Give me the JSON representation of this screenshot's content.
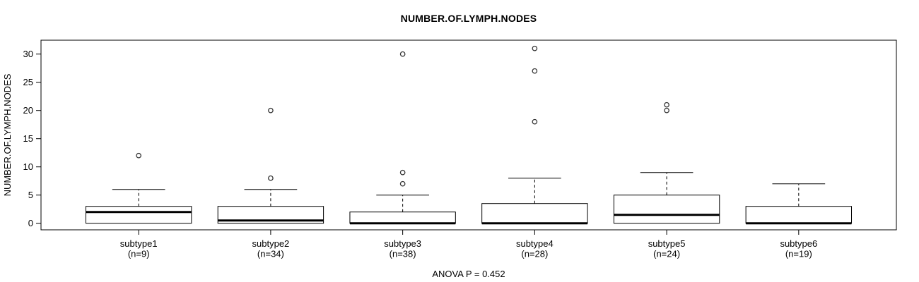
{
  "chart_data": {
    "type": "boxplot",
    "title": "NUMBER.OF.LYMPH.NODES",
    "ylabel": "NUMBER.OF.LYMPH.NODES",
    "xlabel": "",
    "annotation": "ANOVA P = 0.452",
    "yticks": [
      0,
      5,
      10,
      15,
      20,
      25,
      30
    ],
    "ylim": [
      -1.2,
      32.5
    ],
    "grid": false,
    "legend": "none",
    "groups": [
      {
        "label": "subtype1",
        "n": 9,
        "n_label": "(n=9)",
        "whisker_low": 0,
        "q1": 0,
        "median": 2,
        "q3": 3,
        "whisker_high": 6,
        "outliers": [
          12
        ]
      },
      {
        "label": "subtype2",
        "n": 34,
        "n_label": "(n=34)",
        "whisker_low": 0,
        "q1": 0,
        "median": 0.5,
        "q3": 3,
        "whisker_high": 6,
        "outliers": [
          8,
          20
        ]
      },
      {
        "label": "subtype3",
        "n": 38,
        "n_label": "(n=38)",
        "whisker_low": 0,
        "q1": 0,
        "median": 0,
        "q3": 2,
        "whisker_high": 5,
        "outliers": [
          7,
          9,
          30
        ]
      },
      {
        "label": "subtype4",
        "n": 28,
        "n_label": "(n=28)",
        "whisker_low": 0,
        "q1": 0,
        "median": 0,
        "q3": 3.5,
        "whisker_high": 8,
        "outliers": [
          18,
          27,
          31
        ]
      },
      {
        "label": "subtype5",
        "n": 24,
        "n_label": "(n=24)",
        "whisker_low": 0,
        "q1": 0,
        "median": 1.5,
        "q3": 5,
        "whisker_high": 9,
        "outliers": [
          20,
          21
        ]
      },
      {
        "label": "subtype6",
        "n": 19,
        "n_label": "(n=19)",
        "whisker_low": 0,
        "q1": 0,
        "median": 0,
        "q3": 3,
        "whisker_high": 7,
        "outliers": []
      }
    ],
    "colors": {
      "line": "#000000",
      "median": "#000000",
      "outlier_stroke": "#333333",
      "box_fill": "#ffffff",
      "background": "#ffffff"
    }
  }
}
